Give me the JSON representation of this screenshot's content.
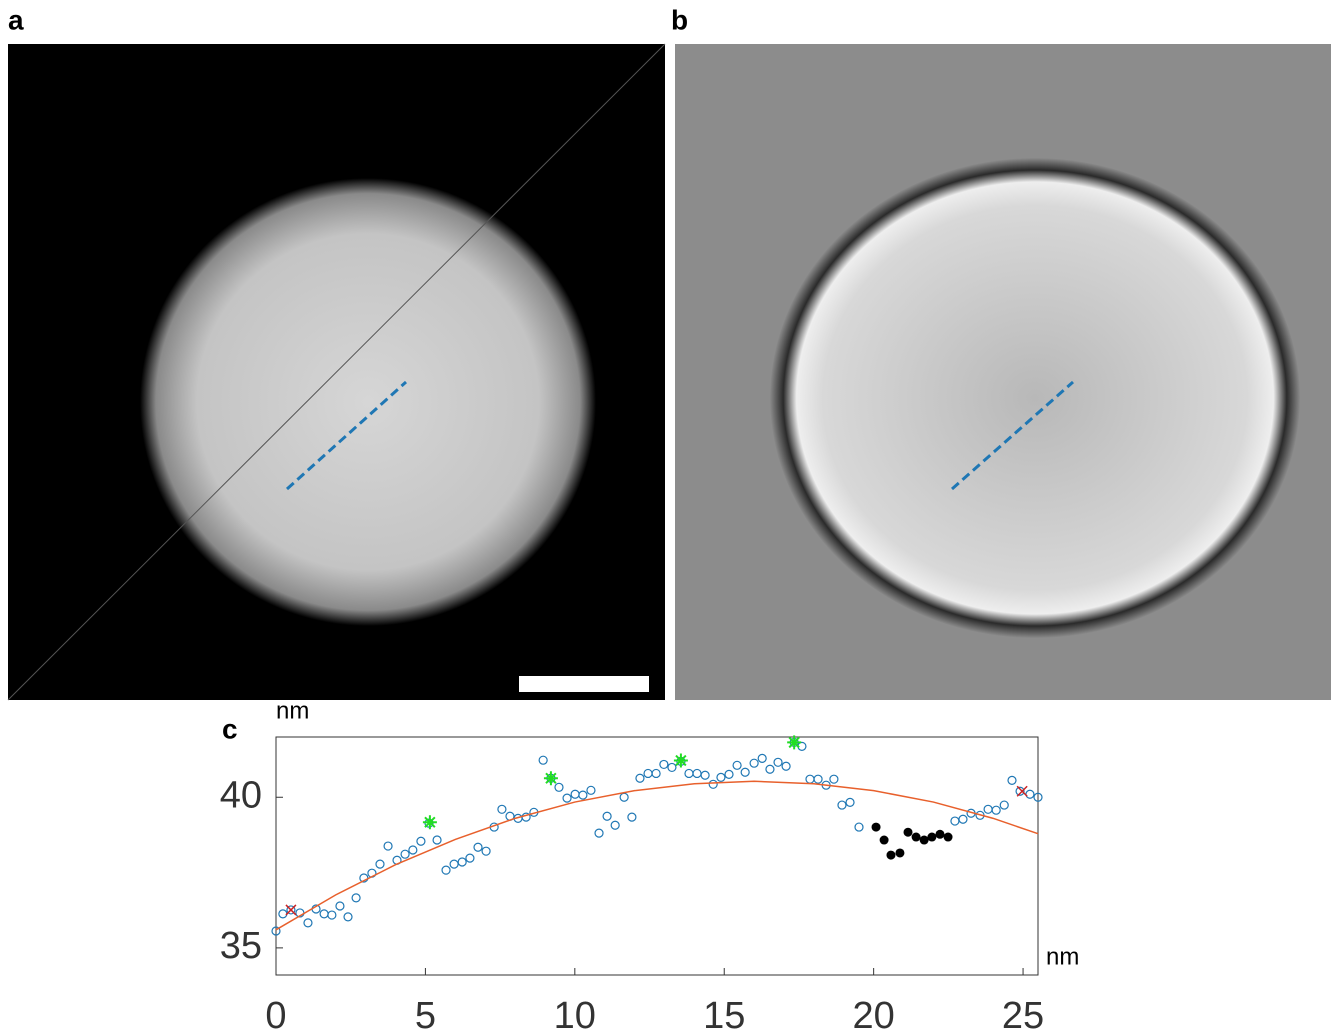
{
  "panels": {
    "a": "a",
    "b": "b",
    "c": "c"
  },
  "chart_data": {
    "type": "scatter",
    "x_unit": "nm",
    "y_unit": "nm",
    "xlim": [
      0,
      25.5
    ],
    "ylim": [
      34.1,
      42
    ],
    "xticks": [
      0,
      5,
      10,
      15,
      20,
      25
    ],
    "yticks": [
      35,
      40
    ],
    "series": [
      {
        "color": "#1f77b4",
        "marker": "circle-open",
        "x": [
          0.0,
          0.23,
          0.5,
          0.8,
          1.07,
          1.34,
          1.61,
          1.87,
          2.14,
          2.41,
          2.68,
          2.94,
          3.21,
          3.48,
          3.75,
          4.05,
          4.32,
          4.58,
          4.85,
          5.12,
          5.39,
          5.69,
          5.96,
          6.23,
          6.49,
          6.76,
          7.03,
          7.3,
          7.56,
          7.83,
          8.1,
          8.37,
          8.63,
          8.94,
          9.2,
          9.47,
          9.74,
          10.01,
          10.27,
          10.54,
          10.81,
          11.08,
          11.35,
          11.65,
          11.91,
          12.18,
          12.45,
          12.72,
          12.98,
          13.25,
          13.55,
          13.82,
          14.09,
          14.36,
          14.63,
          14.89,
          15.16,
          15.43,
          15.7,
          16.0,
          16.27,
          16.53,
          16.8,
          17.07,
          17.34,
          17.6,
          17.87,
          18.14,
          18.41,
          18.67,
          18.94,
          19.21,
          19.51,
          22.72,
          22.99,
          23.26,
          23.56,
          23.83,
          24.1,
          24.37,
          24.63,
          24.9,
          25.23,
          25.5
        ],
        "values": [
          35.56,
          36.13,
          36.26,
          36.16,
          35.83,
          36.29,
          36.13,
          36.09,
          36.39,
          36.03,
          36.66,
          37.32,
          37.48,
          37.78,
          38.38,
          37.91,
          38.11,
          38.25,
          38.54,
          39.14,
          38.58,
          37.58,
          37.78,
          37.85,
          37.98,
          38.34,
          38.21,
          39.01,
          39.6,
          39.37,
          39.3,
          39.34,
          39.5,
          41.23,
          40.63,
          40.33,
          39.97,
          40.1,
          40.07,
          40.23,
          38.81,
          39.37,
          39.07,
          40.0,
          39.34,
          40.63,
          40.79,
          40.79,
          41.09,
          40.99,
          41.19,
          40.79,
          40.79,
          40.73,
          40.43,
          40.66,
          40.76,
          41.06,
          40.83,
          41.13,
          41.29,
          40.93,
          41.16,
          41.03,
          41.82,
          41.69,
          40.6,
          40.6,
          40.4,
          40.6,
          39.74,
          39.83,
          39.01,
          39.21,
          39.27,
          39.47,
          39.4,
          39.6,
          39.57,
          39.74,
          40.56,
          40.2,
          40.1,
          40.0
        ]
      },
      {
        "color": "#000000",
        "marker": "circle-filled",
        "x": [
          20.08,
          20.35,
          20.58,
          20.88,
          21.15,
          21.42,
          21.69,
          21.95,
          22.22,
          22.49
        ],
        "values": [
          39.01,
          38.58,
          38.08,
          38.15,
          38.84,
          38.68,
          38.58,
          38.68,
          38.77,
          38.68
        ]
      },
      {
        "color": "#22dd22",
        "marker": "star",
        "x": [
          5.15,
          9.2,
          13.55,
          17.34
        ],
        "values": [
          39.17,
          40.63,
          41.22,
          41.82
        ]
      },
      {
        "color": "#cc2222",
        "marker": "cross",
        "x": [
          0.5,
          24.97
        ],
        "values": [
          36.26,
          40.2
        ]
      },
      {
        "color": "#e8602c",
        "marker": "line",
        "x": [
          0,
          2,
          4,
          6,
          8,
          10,
          12,
          14,
          16,
          18,
          20,
          22,
          24,
          25.5
        ],
        "values": [
          35.6,
          36.76,
          37.76,
          38.6,
          39.3,
          39.84,
          40.22,
          40.45,
          40.53,
          40.45,
          40.22,
          39.84,
          39.3,
          38.79
        ]
      }
    ]
  }
}
